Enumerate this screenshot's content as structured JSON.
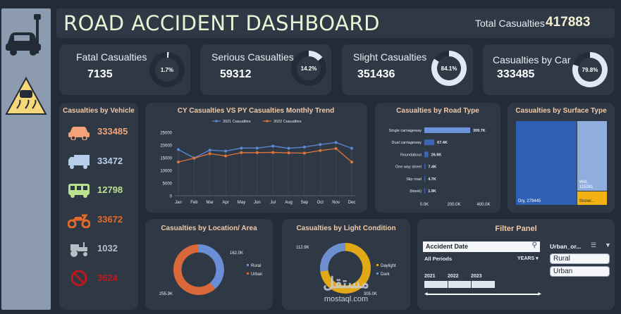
{
  "header": {
    "title": "ROAD ACCIDENT DASHBOARD",
    "total_label": "Total Casualties",
    "total_value": "417883"
  },
  "kpis": [
    {
      "label": "Fatal Casualties",
      "value": "7135",
      "pct_label": "1.7%",
      "pct": 1.7
    },
    {
      "label": "Serious Casualties",
      "value": "59312",
      "pct_label": "14.2%",
      "pct": 14.2
    },
    {
      "label": "Slight Casualties",
      "value": "351436",
      "pct_label": "84.1%",
      "pct": 84.1
    },
    {
      "label": "Casualties by Car",
      "value": "333485",
      "pct_label": "79.8%",
      "pct": 79.8
    }
  ],
  "vehicles": {
    "title": "Casualties by Vehicle",
    "items": [
      {
        "icon": "car-icon",
        "value": "333485",
        "color": "#f4a37b"
      },
      {
        "icon": "truck-icon",
        "value": "33472",
        "color": "#b7cde9"
      },
      {
        "icon": "bus-icon",
        "value": "12798",
        "color": "#b8e08e"
      },
      {
        "icon": "motorcycle-icon",
        "value": "33672",
        "color": "#e36a2a"
      },
      {
        "icon": "tractor-icon",
        "value": "1032",
        "color": "#b9bec6"
      },
      {
        "icon": "no-entry-icon",
        "value": "3624",
        "color": "#c0171c"
      }
    ]
  },
  "watermark": {
    "arabic": "مستقل",
    "latin": "mostaql.com"
  },
  "filter": {
    "title": "Filter Panel",
    "date_header": "Accident Date",
    "periods_label": "All Periods",
    "granularity": "YEARS",
    "years": [
      "2021",
      "2022",
      "2023"
    ],
    "area_header": "Urban_or...",
    "area_options": [
      "Rural",
      "Urban"
    ]
  },
  "chart_data": [
    {
      "type": "line",
      "title": "CY Casualties VS PY Casualties Monthly Trend",
      "categories": [
        "Jan",
        "Feb",
        "Mar",
        "Apr",
        "May",
        "Jun",
        "Jul",
        "Aug",
        "Sep",
        "Oct",
        "Nov",
        "Dec"
      ],
      "series": [
        {
          "name": "2021 Casualties",
          "color": "#5b8ad6",
          "values": [
            18200,
            14900,
            18000,
            17600,
            18800,
            18800,
            19600,
            18700,
            19200,
            20200,
            21000,
            18700
          ]
        },
        {
          "name": "2022 Casualties",
          "color": "#e0753a",
          "values": [
            13300,
            14800,
            16600,
            15700,
            17000,
            17000,
            17100,
            16900,
            16800,
            17800,
            18600,
            13300
          ]
        }
      ],
      "yticks": [
        0,
        5000,
        10000,
        15000,
        20000,
        25000
      ],
      "ylim": [
        0,
        25000
      ],
      "legend": "top"
    },
    {
      "type": "bar",
      "orientation": "horizontal",
      "title": "Casualties by Road Type",
      "categories": [
        "Single carriageway",
        "Dual carriageway",
        "Roundabout",
        "One way street",
        "Slip road",
        "(blank)"
      ],
      "values": [
        309700,
        67400,
        26900,
        7400,
        4700,
        1900
      ],
      "labels": [
        "309.7K",
        "67.4K",
        "26.9K",
        "7.4K",
        "4.7K",
        "1.9K"
      ],
      "xticks": [
        "0.0K",
        "200.0K",
        "400.0K"
      ],
      "xlim": [
        0,
        400000
      ]
    },
    {
      "type": "treemap",
      "title": "Casualties by Surface Type",
      "items": [
        {
          "label": "Dry, 279445",
          "value": 279445,
          "color": "#2f5fb3"
        },
        {
          "label": "Wet, 115261",
          "value": 115261,
          "color": "#8faede"
        },
        {
          "label": "Snow/...",
          "value": 23177,
          "color": "#f3b214"
        }
      ]
    },
    {
      "type": "pie",
      "style": "donut",
      "title": "Casualties by Location/ Area",
      "slices": [
        {
          "name": "Rural",
          "value": 162000,
          "label": "162.0K",
          "color": "#6a8fd8"
        },
        {
          "name": "Urban",
          "value": 255900,
          "label": "255.9K",
          "color": "#d9673a"
        }
      ]
    },
    {
      "type": "pie",
      "style": "donut",
      "title": "Casualties by Light Condition",
      "slices": [
        {
          "name": "Daylight",
          "value": 305000,
          "label": "305.0K",
          "color": "#e1a916"
        },
        {
          "name": "Dark",
          "value": 112900,
          "label": "112.9K",
          "color": "#6d8fd0"
        }
      ]
    }
  ]
}
